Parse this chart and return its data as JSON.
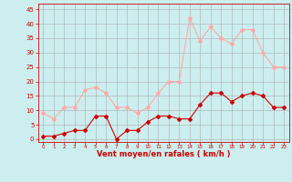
{
  "x": [
    0,
    1,
    2,
    3,
    4,
    5,
    6,
    7,
    8,
    9,
    10,
    11,
    12,
    13,
    14,
    15,
    16,
    17,
    18,
    19,
    20,
    21,
    22,
    23
  ],
  "wind_avg": [
    1,
    1,
    2,
    3,
    3,
    8,
    8,
    0,
    3,
    3,
    6,
    8,
    8,
    7,
    7,
    12,
    16,
    16,
    13,
    15,
    16,
    15,
    11,
    11
  ],
  "wind_gust": [
    9,
    7,
    11,
    11,
    17,
    18,
    16,
    11,
    11,
    9,
    11,
    16,
    20,
    20,
    42,
    34,
    39,
    35,
    33,
    38,
    38,
    30,
    25,
    25
  ],
  "color_avg": "#cc0000",
  "color_gust": "#ffaaaa",
  "bg_color": "#cceeee",
  "grid_color": "#aaaaaa",
  "xlabel": "Vent moyen/en rafales ( km/h )",
  "xlabel_color": "#cc0000",
  "yticks": [
    0,
    5,
    10,
    15,
    20,
    25,
    30,
    35,
    40,
    45
  ],
  "ylim": [
    -1,
    47
  ],
  "xlim": [
    -0.5,
    23.5
  ],
  "tick_color": "#cc0000",
  "axis_color": "#cc0000",
  "marker": "D",
  "markersize": 2.0,
  "linewidth": 0.8
}
